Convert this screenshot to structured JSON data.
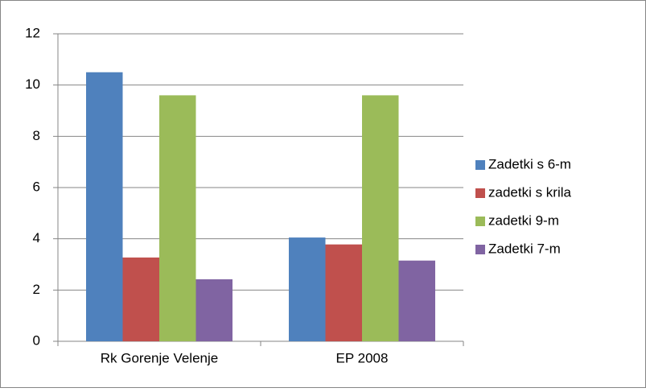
{
  "chart_data": {
    "type": "bar",
    "categories": [
      "Rk Gorenje Velenje",
      "EP 2008"
    ],
    "series": [
      {
        "name": "Zadetki s 6-m",
        "color": "#4f81bd",
        "values": [
          10.5,
          4.05
        ]
      },
      {
        "name": "zadetki s krila",
        "color": "#c0504d",
        "values": [
          3.27,
          3.78
        ]
      },
      {
        "name": "zadetki 9-m",
        "color": "#9bbb59",
        "values": [
          9.6,
          9.6
        ]
      },
      {
        "name": "Zadetki 7-m",
        "color": "#8064a2",
        "values": [
          2.42,
          3.15
        ]
      }
    ],
    "ylim": [
      0,
      12
    ],
    "yticks": [
      0,
      2,
      4,
      6,
      8,
      10,
      12
    ],
    "grid": true,
    "legend": "right"
  }
}
